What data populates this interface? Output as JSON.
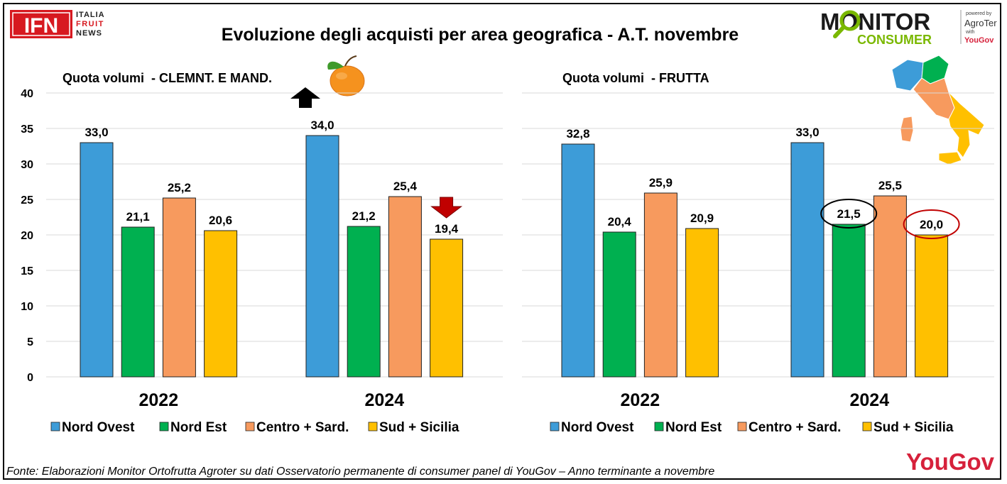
{
  "title": "Evoluzione degli acquisti per area geografica - A.T. novembre",
  "source": "Fonte: Elaborazioni Monitor Ortofrutta Agroter su dati Osservatorio permanente di consumer panel di YouGov – Anno terminante a novembre",
  "logos": {
    "ifn": {
      "mark": "IFN",
      "line1": "ITALIA",
      "line2": "FRUIT",
      "line3": "NEWS"
    },
    "monitor": {
      "word1": "MONITOR",
      "word2": "CONSUMER",
      "powered": "powered by",
      "agroter": "AgroTer",
      "with": "with",
      "yougov": "YouGov"
    },
    "yougov_footer": "YouGov"
  },
  "colors": {
    "Nord Ovest": "#3d9cd8",
    "Nord Est": "#00b050",
    "Centro + Sard.": "#f79a5e",
    "Sud + Sicilia": "#ffc000"
  },
  "chart_data": [
    {
      "type": "bar",
      "title": "Quota volumi  - CLEMNT. E MAND.",
      "categories": [
        "2022",
        "2024"
      ],
      "ylim": [
        0,
        40
      ],
      "yticks": [
        "0",
        "5",
        "10",
        "15",
        "20",
        "25",
        "30",
        "35",
        "40"
      ],
      "grid": true,
      "legend": "bottom",
      "series": [
        {
          "name": "Nord Ovest",
          "values": [
            33.0,
            34.0
          ],
          "labels": [
            "33,0",
            "34,0"
          ]
        },
        {
          "name": "Nord Est",
          "values": [
            21.1,
            21.2
          ],
          "labels": [
            "21,1",
            "21,2"
          ]
        },
        {
          "name": "Centro + Sard.",
          "values": [
            25.2,
            25.4
          ],
          "labels": [
            "25,2",
            "25,4"
          ]
        },
        {
          "name": "Sud + Sicilia",
          "values": [
            20.6,
            19.4
          ],
          "labels": [
            "20,6",
            "19,4"
          ]
        }
      ],
      "annotations": [
        {
          "type": "arrow-up",
          "color": "#000000",
          "series": "Nord Ovest",
          "category": "2024"
        },
        {
          "type": "arrow-down",
          "color": "#c00000",
          "series": "Sud + Sicilia",
          "category": "2024"
        }
      ]
    },
    {
      "type": "bar",
      "title": "Quota volumi  - FRUTTA",
      "categories": [
        "2022",
        "2024"
      ],
      "ylim": [
        0,
        40
      ],
      "grid": true,
      "legend": "bottom",
      "series": [
        {
          "name": "Nord Ovest",
          "values": [
            32.8,
            33.0
          ],
          "labels": [
            "32,8",
            "33,0"
          ]
        },
        {
          "name": "Nord Est",
          "values": [
            20.4,
            21.5
          ],
          "labels": [
            "20,4",
            "21,5"
          ]
        },
        {
          "name": "Centro + Sard.",
          "values": [
            25.9,
            25.5
          ],
          "labels": [
            "25,9",
            "25,5"
          ]
        },
        {
          "name": "Sud + Sicilia",
          "values": [
            20.9,
            20.0
          ],
          "labels": [
            "20,9",
            "20,0"
          ]
        }
      ],
      "annotations": [
        {
          "type": "ellipse",
          "color": "#000000",
          "series": "Nord Est",
          "category": "2024"
        },
        {
          "type": "ellipse",
          "color": "#c00000",
          "series": "Sud + Sicilia",
          "category": "2024"
        }
      ]
    }
  ]
}
